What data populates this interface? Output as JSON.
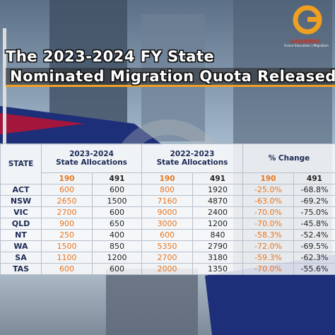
{
  "logo": {
    "chinese": "格瑞絲留學移民",
    "english": "Grace Education | Migration"
  },
  "header": {
    "title_line1": "The 2023-2024 FY State",
    "title_line2": "Nominated Migration Quota Released"
  },
  "table": {
    "state_header": "STATE",
    "groups": [
      {
        "year": "2023-2024",
        "label": "State Allocations"
      },
      {
        "year": "2022-2023",
        "label": "State Allocations"
      },
      {
        "label": "% Change"
      }
    ],
    "subheaders": [
      "190",
      "491",
      "190",
      "491",
      "190",
      "491"
    ],
    "rows": [
      [
        "ACT",
        "600",
        "600",
        "800",
        "1920",
        "-25.0%",
        "-68.8%"
      ],
      [
        "NSW",
        "2650",
        "1500",
        "7160",
        "4870",
        "-63.0%",
        "-69.2%"
      ],
      [
        "VIC",
        "2700",
        "600",
        "9000",
        "2400",
        "-70.0%",
        "-75.0%"
      ],
      [
        "QLD",
        "900",
        "650",
        "3000",
        "1200",
        "-70.0%",
        "-45.8%"
      ],
      [
        "NT",
        "250",
        "400",
        "600",
        "840",
        "-58.3%",
        "-52.4%"
      ],
      [
        "WA",
        "1500",
        "850",
        "5350",
        "2790",
        "-72.0%",
        "-69.5%"
      ],
      [
        "SA",
        "1100",
        "1200",
        "2700",
        "3180",
        "-59.3%",
        "-62.3%"
      ],
      [
        "TAS",
        "600",
        "600",
        "2000",
        "1350",
        "-70.0%",
        "-55.6%"
      ]
    ]
  }
}
